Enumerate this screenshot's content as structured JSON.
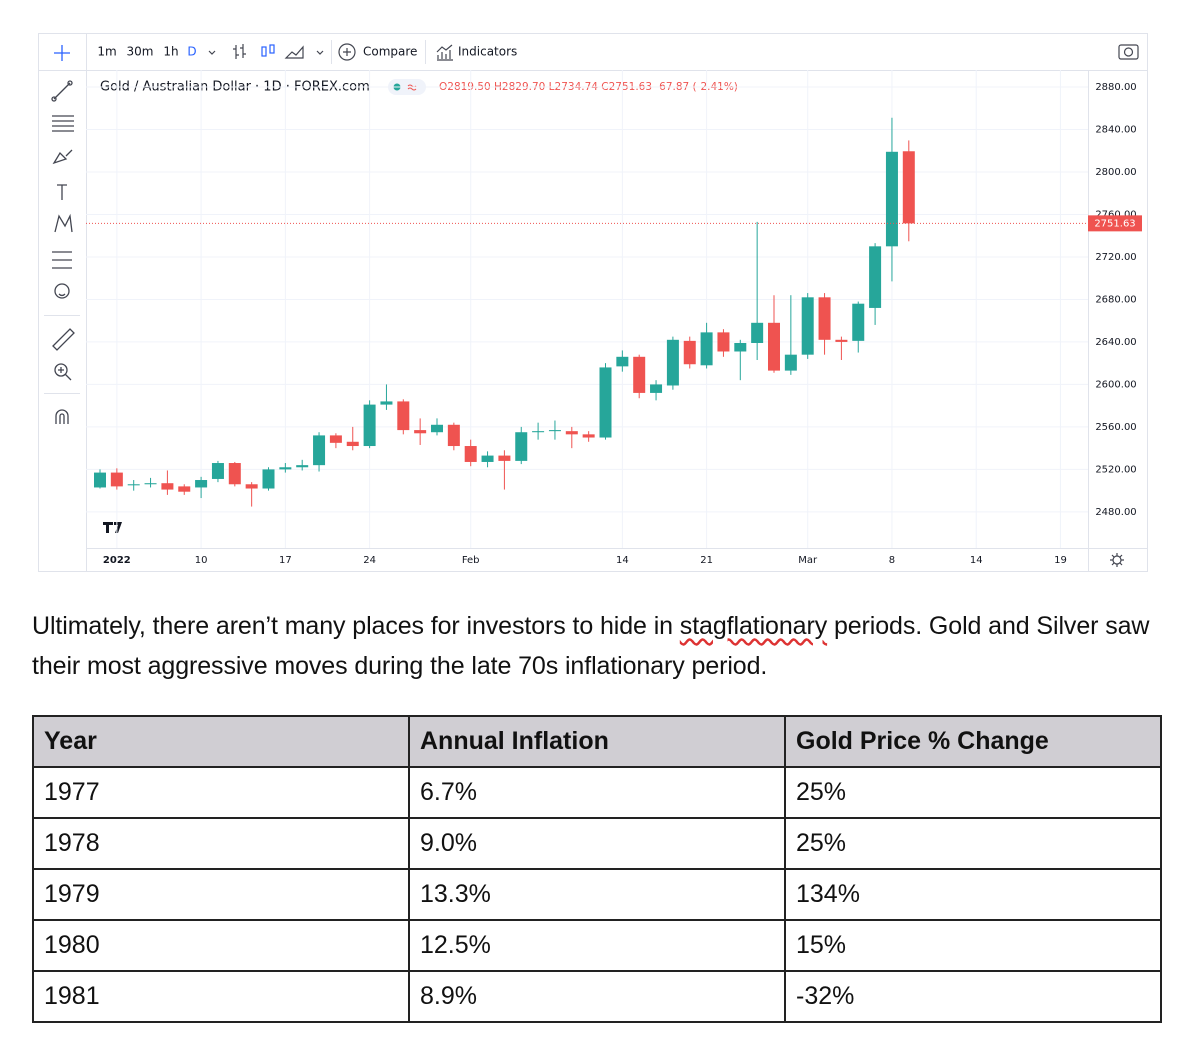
{
  "chart_data": {
    "type": "candlestick",
    "toolbar": {
      "intervals": [
        "1m",
        "30m",
        "1h",
        "D"
      ],
      "compare": "Compare",
      "indicators": "Indicators"
    },
    "title": "Gold / Australian Dollar · 1D · FOREX.com",
    "ohlc_text": "O2819.50 H2829.70 L2734.74 C2751.63 -67.87 (-2.41%)",
    "open": [
      2503,
      2517,
      2505,
      2506,
      2507,
      2504,
      2503,
      2511,
      2526,
      2506,
      2502,
      2520,
      2522,
      2524,
      2552,
      2546,
      2542,
      2581,
      2584,
      2557,
      2555,
      2562,
      2542,
      2527,
      2533,
      2528,
      2555,
      2556,
      2556,
      2553,
      2550,
      2617,
      2626,
      2592,
      2599,
      2641,
      2618,
      2649,
      2631,
      2639,
      2658,
      2613,
      2628,
      2682,
      2642,
      2641,
      2672,
      2730,
      2819.5
    ],
    "high": [
      2520,
      2521,
      2510,
      2512,
      2519,
      2506,
      2513,
      2528,
      2527,
      2508,
      2522,
      2526,
      2529,
      2555,
      2554,
      2560,
      2585,
      2600,
      2586,
      2568,
      2568,
      2564,
      2548,
      2537,
      2538,
      2560,
      2564,
      2566,
      2560,
      2556,
      2620,
      2632,
      2628,
      2604,
      2645,
      2645,
      2658,
      2652,
      2642,
      2753,
      2684,
      2684,
      2686,
      2686,
      2645,
      2678,
      2733,
      2851,
      2829.7
    ],
    "low": [
      2502,
      2501,
      2500,
      2503,
      2496,
      2496,
      2493,
      2508,
      2504,
      2485,
      2500,
      2517,
      2519,
      2518,
      2540,
      2538,
      2540,
      2576,
      2553,
      2543,
      2552,
      2538,
      2523,
      2522,
      2501,
      2525,
      2548,
      2548,
      2540,
      2546,
      2548,
      2612,
      2587,
      2585,
      2595,
      2615,
      2615,
      2626,
      2604,
      2623,
      2611,
      2609,
      2624,
      2628,
      2623,
      2630,
      2656,
      2697,
      2734.74
    ],
    "close": [
      2517,
      2504,
      2506,
      2507,
      2501,
      2499,
      2510,
      2526,
      2506,
      2502,
      2520,
      2522,
      2524,
      2552,
      2545,
      2542,
      2581,
      2584,
      2557,
      2554,
      2562,
      2542,
      2527,
      2533,
      2528,
      2555,
      2556,
      2557,
      2553,
      2550,
      2616,
      2626,
      2592,
      2600,
      2642,
      2619,
      2649,
      2631,
      2639,
      2658,
      2613,
      2628,
      2682,
      2642,
      2640,
      2676,
      2730,
      2819,
      2751.63
    ],
    "up_color": "#26a69a",
    "down_color": "#ef5350",
    "ylim": [
      2446,
      2896
    ],
    "yticks": [
      {
        "value": 2480,
        "label": "2480.00"
      },
      {
        "value": 2520,
        "label": "2520.00"
      },
      {
        "value": 2560,
        "label": "2560.00"
      },
      {
        "value": 2600,
        "label": "2600.00"
      },
      {
        "value": 2640,
        "label": "2640.00"
      },
      {
        "value": 2680,
        "label": "2680.00"
      },
      {
        "value": 2720,
        "label": "2720.00"
      },
      {
        "value": 2760,
        "label": "2760.00"
      },
      {
        "value": 2800,
        "label": "2800.00"
      },
      {
        "value": 2840,
        "label": "2840.00"
      },
      {
        "value": 2880,
        "label": "2880.00"
      }
    ],
    "xticks": [
      {
        "value": 1,
        "label": "2022"
      },
      {
        "value": 6,
        "label": "10"
      },
      {
        "value": 11,
        "label": "17"
      },
      {
        "value": 16,
        "label": "24"
      },
      {
        "value": 22,
        "label": "Feb"
      },
      {
        "value": 31,
        "label": "14"
      },
      {
        "value": 36,
        "label": "21"
      },
      {
        "value": 42,
        "label": "Mar"
      },
      {
        "value": 47,
        "label": "8"
      },
      {
        "value": 52,
        "label": "14"
      },
      {
        "value": 57,
        "label": "19"
      }
    ],
    "last_price_label": "2751.63",
    "grid": true
  },
  "paragraph": {
    "before": "Ultimately, there aren’t many places for investors to hide in ",
    "flagged": "stagflationary",
    "after": " periods. Gold and Silver saw their most aggressive moves during the late 70s inflationary period."
  },
  "table": {
    "header": [
      "Year",
      "Annual Inflation",
      "Gold Price % Change"
    ],
    "rows": [
      [
        "1977",
        "6.7%",
        "25%"
      ],
      [
        "1978",
        "9.0%",
        "25%"
      ],
      [
        "1979",
        "13.3%",
        "134%"
      ],
      [
        "1980",
        "12.5%",
        "15%"
      ],
      [
        "1981",
        "8.9%",
        "-32%"
      ]
    ]
  }
}
